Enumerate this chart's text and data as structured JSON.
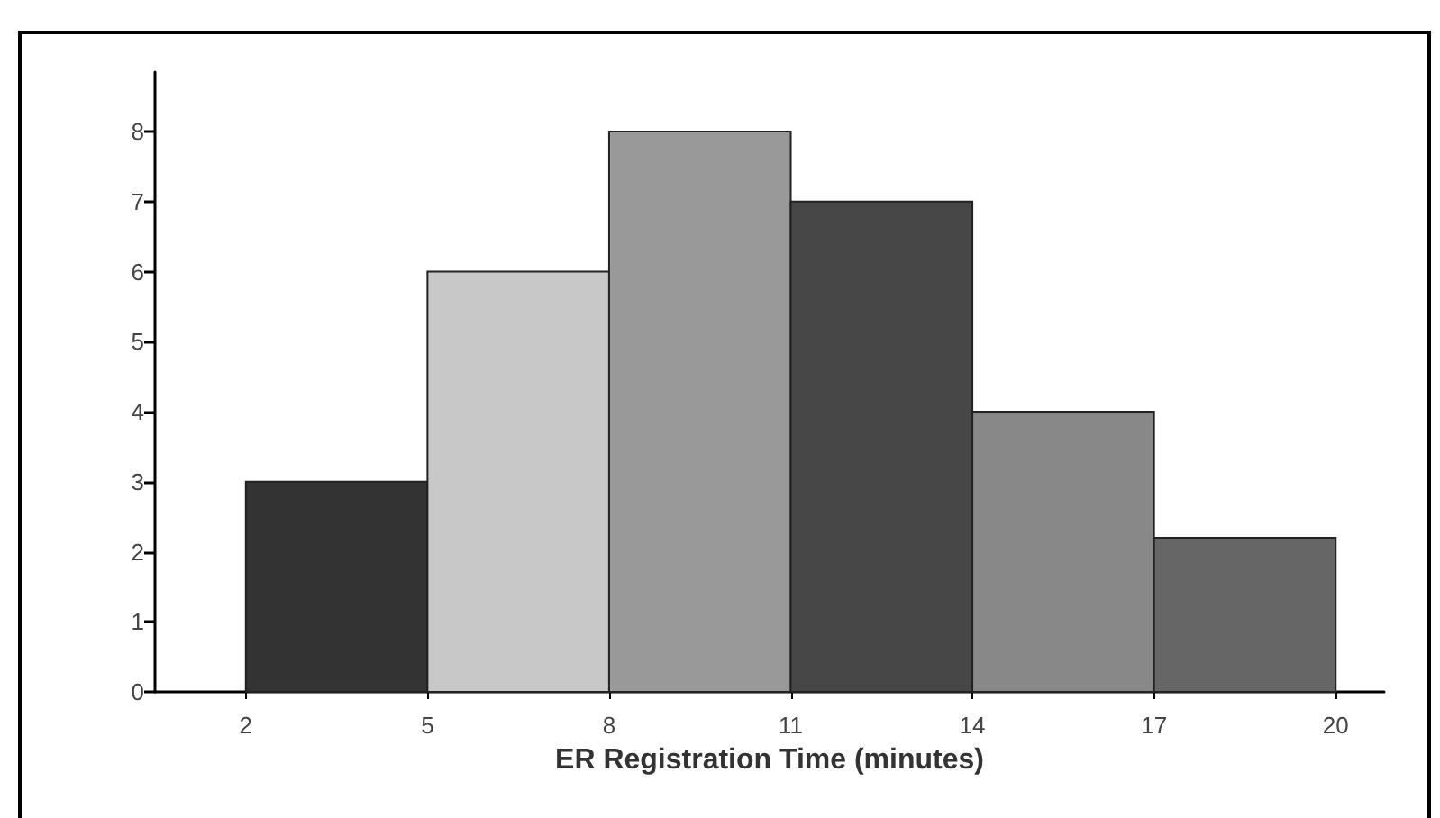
{
  "chart_data": {
    "type": "histogram",
    "xlabel": "ER Registration Time (minutes)",
    "bins": [
      2,
      5,
      8,
      11,
      14,
      17,
      20
    ],
    "values": [
      3,
      6,
      8,
      7,
      4,
      2.2
    ],
    "colors": [
      "#333333",
      "#c8c8c8",
      "#999999",
      "#474747",
      "#888888",
      "#666666"
    ],
    "xlim": [
      0.5,
      20.8
    ],
    "xticks": [
      2,
      5,
      8,
      11,
      14,
      17,
      20
    ],
    "ylim": [
      0,
      8.85
    ],
    "yticks": [
      0,
      1,
      2,
      3,
      4,
      5,
      6,
      7,
      8
    ],
    "grid": false
  }
}
